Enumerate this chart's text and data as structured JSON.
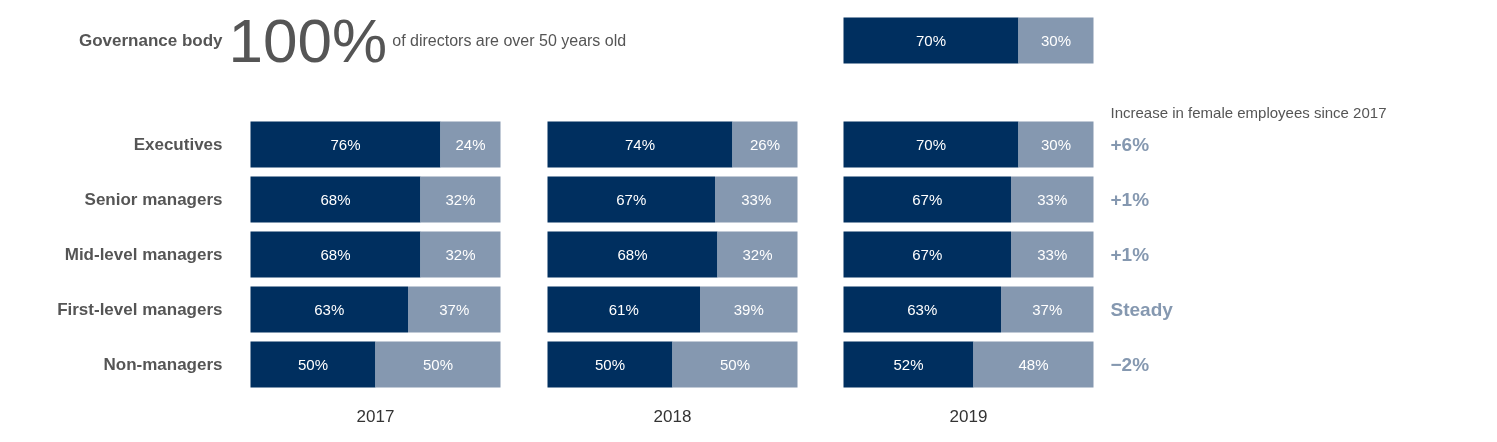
{
  "chart_data": [
    {
      "type": "bar",
      "orientation": "horizontal",
      "stacked": true,
      "xlabel": "2017",
      "tick_labels": "y",
      "categories": [
        "Governance body",
        "Executives",
        "Senior managers",
        "Mid-level managers",
        "First-level managers",
        "Non-managers"
      ],
      "series": [
        {
          "color": "#002f5f",
          "values": [
            null,
            76,
            68,
            68,
            63,
            50
          ],
          "value_labels": [
            null,
            "76%",
            "68%",
            "68%",
            "63%",
            "50%"
          ]
        },
        {
          "color": "#8598b0",
          "values": [
            null,
            24,
            32,
            32,
            37,
            50
          ],
          "value_labels": [
            null,
            "24%",
            "32%",
            "32%",
            "37%",
            "50%"
          ]
        }
      ],
      "annotations": [
        "100%",
        "of directors are over 50 years old"
      ]
    },
    {
      "type": "bar",
      "orientation": "horizontal",
      "stacked": true,
      "xlabel": "2018",
      "tick_labels": false,
      "categories": [
        null,
        null,
        null,
        null,
        null,
        null
      ],
      "series": [
        {
          "color": "#002f5f",
          "values": [
            null,
            74,
            67,
            68,
            61,
            50
          ],
          "value_labels": [
            null,
            "74%",
            "67%",
            "68%",
            "61%",
            "50%"
          ]
        },
        {
          "color": "#8598b0",
          "values": [
            null,
            26,
            33,
            32,
            39,
            50
          ],
          "value_labels": [
            null,
            "26%",
            "33%",
            "32%",
            "39%",
            "50%"
          ]
        }
      ]
    },
    {
      "type": "bar",
      "orientation": "horizontal",
      "stacked": true,
      "xlabel": "2019",
      "tick_labels": false,
      "categories": [
        null,
        null,
        null,
        null,
        null,
        null
      ],
      "series": [
        {
          "color": "#002f5f",
          "values": [
            70,
            70,
            67,
            67,
            63,
            52
          ],
          "value_labels": [
            "70%",
            "70%",
            "67%",
            "67%",
            "63%",
            "52%"
          ]
        },
        {
          "color": "#8598b0",
          "values": [
            30,
            30,
            33,
            33,
            37,
            48
          ],
          "value_labels": [
            "30%",
            "30%",
            "33%",
            "33%",
            "37%",
            "48%"
          ]
        }
      ],
      "annotations": [
        "Increase in female employees since 2017",
        "+6%",
        "+1%",
        "+1%",
        "Steady",
        "−2%"
      ]
    }
  ]
}
